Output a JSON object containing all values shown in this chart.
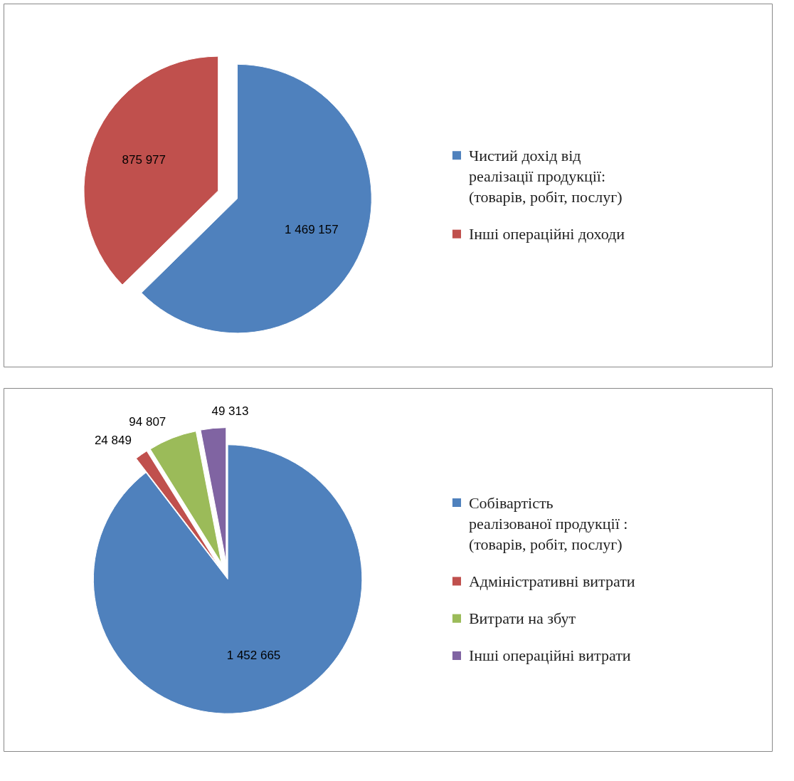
{
  "chart_data": [
    {
      "type": "pie",
      "categories": [
        "Чистий дохід від реалізації продукції: (товарів, робіт, послуг)",
        "Інші операційні доходи"
      ],
      "values": [
        1469157,
        875977
      ],
      "colors": [
        "#4f81bd",
        "#c0504d"
      ],
      "value_labels": [
        "1 469 157",
        "875 977"
      ],
      "legend": "right"
    },
    {
      "type": "pie",
      "categories": [
        "Собівартість реалізованої продукції : (товарів, робіт, послуг)",
        "Адміністративні витрати",
        "Витрати на збут",
        "Інші операційні витрати"
      ],
      "values": [
        1452665,
        24849,
        94807,
        49313
      ],
      "colors": [
        "#4f81bd",
        "#c0504d",
        "#9bbb59",
        "#8064a2"
      ],
      "value_labels": [
        "1 452 665",
        "24 849",
        "94 807",
        "49 313"
      ],
      "legend": "right"
    }
  ]
}
